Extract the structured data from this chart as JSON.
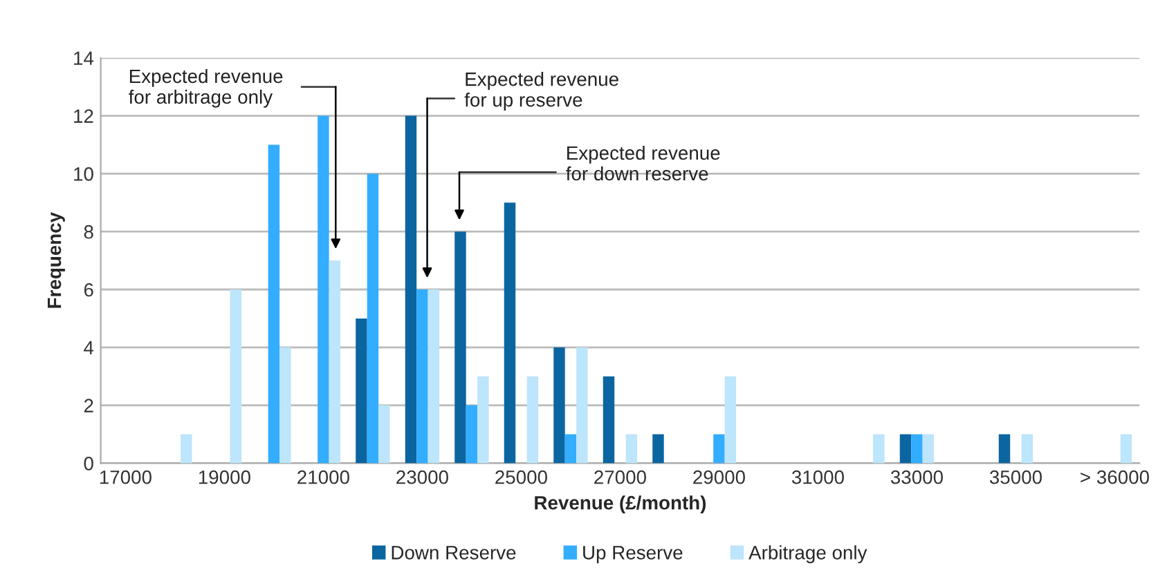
{
  "chart_data": {
    "type": "bar",
    "xlabel": "Revenue (£/month)",
    "ylabel": "Frequency",
    "categories": [
      "17000",
      null,
      "19000",
      null,
      "21000",
      null,
      "23000",
      null,
      "25000",
      null,
      "27000",
      null,
      "29000",
      null,
      "31000",
      null,
      "33000",
      null,
      "35000",
      null,
      "> 36000"
    ],
    "series": [
      {
        "name": "Down Reserve",
        "color": "#0b65a0",
        "values": [
          0,
          0,
          0,
          0,
          0,
          5,
          12,
          8,
          9,
          4,
          3,
          1,
          0,
          0,
          0,
          0,
          1,
          0,
          1,
          0,
          0
        ]
      },
      {
        "name": "Up Reserve",
        "color": "#33adff",
        "values": [
          0,
          0,
          0,
          11,
          12,
          10,
          6,
          2,
          0,
          1,
          0,
          0,
          1,
          0,
          0,
          0,
          1,
          0,
          0,
          0,
          0
        ]
      },
      {
        "name": "Arbitrage only",
        "color": "#bde5fb",
        "values": [
          0,
          1,
          6,
          4,
          7,
          2,
          6,
          3,
          3,
          4,
          1,
          0,
          3,
          0,
          0,
          1,
          1,
          0,
          1,
          0,
          1
        ]
      }
    ],
    "ylim": [
      0,
      14
    ],
    "yticks": [
      0,
      2,
      4,
      6,
      8,
      10,
      12,
      14
    ],
    "grid": "y",
    "legend": "bottom",
    "annotations": [
      "Expected revenue\nfor arbitrage only",
      "Expected revenue\nfor up reserve",
      "Expected revenue\nfor down reserve"
    ]
  }
}
